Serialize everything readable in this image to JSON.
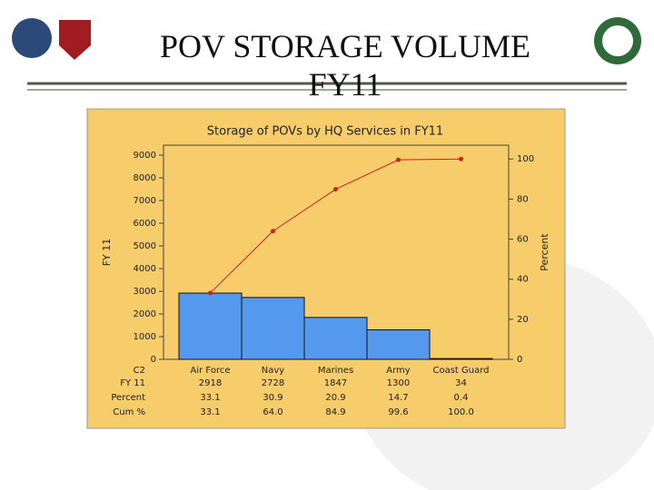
{
  "slide": {
    "title": "POV STORAGE VOLUME FY11"
  },
  "chart_data": {
    "type": "pareto",
    "title": "Storage of POVs by HQ Services in FY11",
    "x_label": "C2",
    "y_label": "FY 11",
    "y2_label": "Percent",
    "categories": [
      "Air Force",
      "Navy",
      "Marines",
      "Army",
      "Coast Guard"
    ],
    "series": [
      {
        "name": "FY 11",
        "color": "#5599ee",
        "values": [
          2918,
          2728,
          1847,
          1300,
          34
        ]
      },
      {
        "name": "Percent",
        "values": [
          33.1,
          30.9,
          20.9,
          14.7,
          0.4
        ]
      },
      {
        "name": "Cum %",
        "color": "#cc2222",
        "axis": "y2",
        "values": [
          33.1,
          64,
          84.9,
          99.6,
          100
        ],
        "value_labels": [
          "33.1",
          "64.0",
          "84.9",
          "99.6",
          "100.0"
        ]
      }
    ],
    "ylim": [
      0,
      9440
    ],
    "yticks": [
      0,
      1000,
      2000,
      3000,
      4000,
      5000,
      6000,
      7000,
      8000,
      9000
    ],
    "y2lim": [
      0,
      106.9
    ],
    "y2ticks": [
      0,
      20,
      40,
      60,
      80,
      100
    ]
  }
}
